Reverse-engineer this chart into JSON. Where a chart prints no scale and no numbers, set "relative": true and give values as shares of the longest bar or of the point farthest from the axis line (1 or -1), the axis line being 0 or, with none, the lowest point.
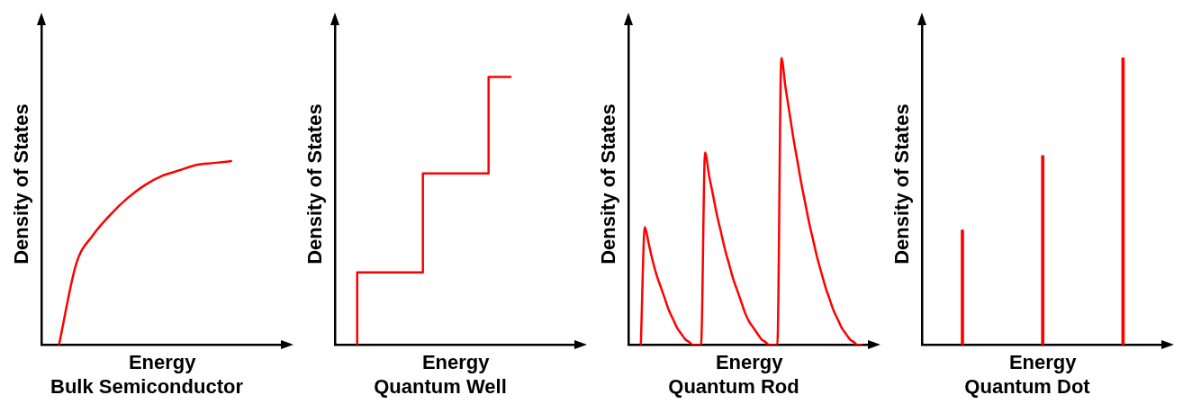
{
  "chart_data": [
    {
      "type": "line",
      "title": "Bulk Semiconductor",
      "xlabel": "Energy",
      "ylabel": "Density of States",
      "relative": true,
      "tick_labels": false,
      "legend": false,
      "marker": "none",
      "color": "#ff0000",
      "categories": [
        null,
        null,
        null,
        null,
        null,
        null,
        null,
        null,
        null,
        null,
        null,
        null,
        null,
        null,
        null
      ],
      "values": [
        null,
        0,
        0.44,
        0.6,
        0.71,
        0.8,
        0.87,
        0.92,
        0.95,
        0.98,
        0.99,
        1,
        null,
        null,
        null
      ]
    },
    {
      "type": "step",
      "title": "Quantum Well",
      "xlabel": "Energy",
      "ylabel": "Density of States",
      "relative": true,
      "tick_labels": false,
      "legend": false,
      "marker": "none",
      "color": "#ff0000",
      "categories": [
        null,
        null,
        null,
        null,
        null,
        null,
        null,
        null,
        null,
        null,
        null,
        null
      ],
      "values": [
        null,
        0,
        0.27,
        0.27,
        0.27,
        0.64,
        0.64,
        0.64,
        1,
        null,
        null,
        null
      ]
    },
    {
      "type": "line",
      "title": "Quantum Rod",
      "xlabel": "Energy",
      "ylabel": "Density of States",
      "relative": true,
      "tick_labels": false,
      "legend": false,
      "marker": "none",
      "color": "#ff0000",
      "categories": [
        null,
        null,
        null,
        null,
        null,
        null,
        null,
        null,
        null,
        null,
        null,
        null,
        null,
        null,
        null,
        null,
        null,
        null,
        null,
        null,
        null,
        null,
        null,
        null,
        null,
        null,
        null,
        null,
        null,
        null,
        null,
        null,
        null,
        null,
        null,
        null,
        null,
        null,
        null,
        null,
        null,
        null,
        null,
        null,
        null,
        null,
        null,
        null,
        null,
        null,
        null,
        null,
        null,
        null,
        null,
        null,
        null,
        null,
        null,
        null,
        null
      ],
      "values": [
        null,
        null,
        null,
        0,
        0.41,
        0.35,
        0.29,
        0.24,
        0.2,
        0.16,
        0.12,
        0.09,
        0.06,
        0.04,
        0.02,
        0.01,
        0,
        0,
        0,
        0.67,
        0.59,
        0.52,
        0.45,
        0.39,
        0.33,
        0.28,
        0.23,
        0.19,
        0.15,
        0.11,
        0.08,
        0.06,
        0.04,
        0.02,
        0.01,
        0,
        0,
        0,
        1,
        0.9,
        0.81,
        0.72,
        0.64,
        0.56,
        0.49,
        0.42,
        0.36,
        0.3,
        0.25,
        0.2,
        0.16,
        0.12,
        0.09,
        0.06,
        0.04,
        0.02,
        0.01,
        0,
        0,
        null,
        null
      ]
    },
    {
      "type": "bar",
      "title": "Quantum Dot",
      "xlabel": "Energy",
      "ylabel": "Density of States",
      "relative": true,
      "tick_labels": false,
      "legend": false,
      "color": "#ff0000",
      "categories": [
        null,
        null,
        null
      ],
      "values": [
        0.4,
        0.66,
        1
      ]
    }
  ]
}
